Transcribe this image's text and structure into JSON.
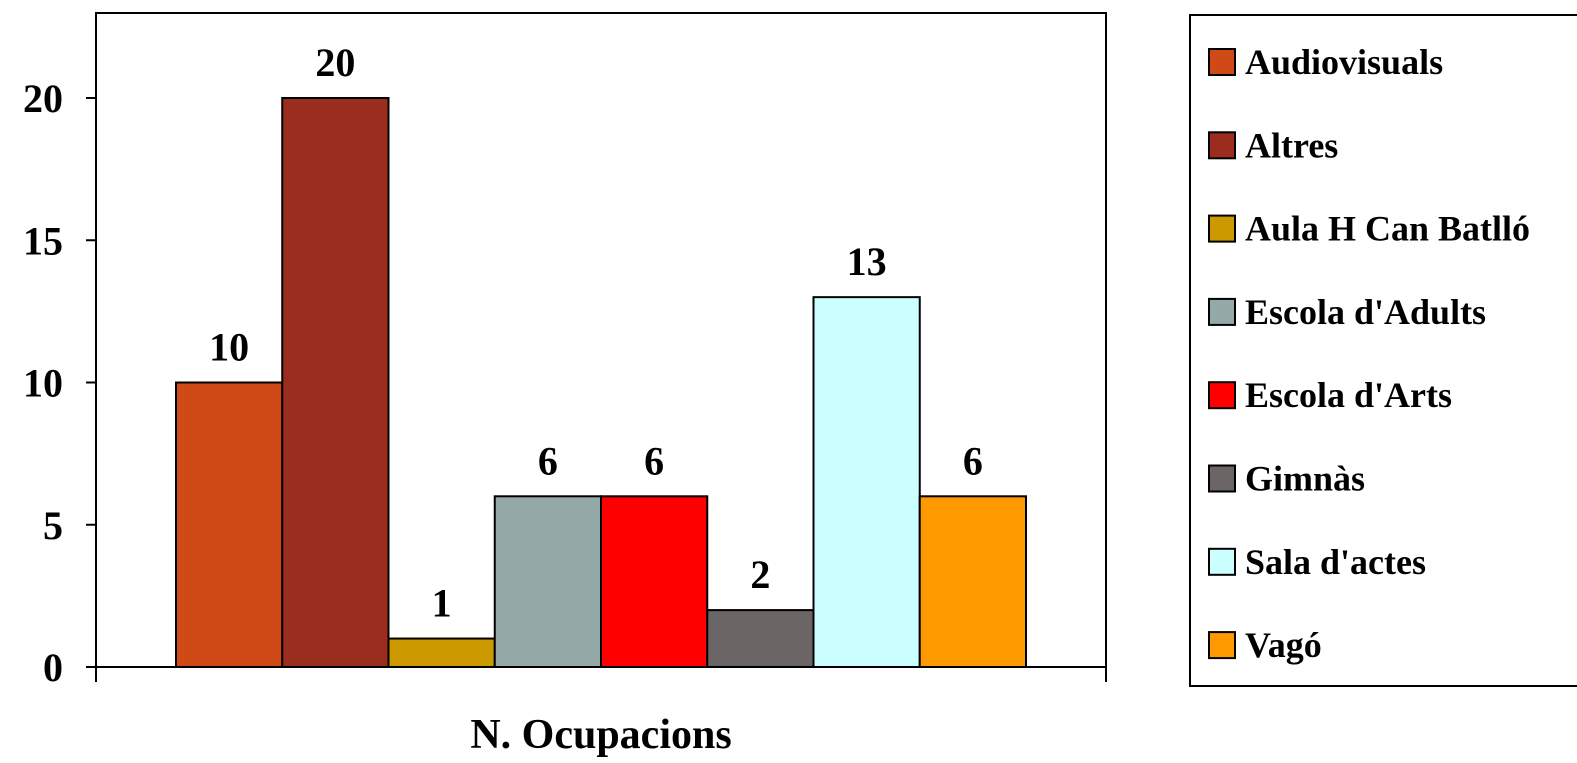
{
  "chart_data": {
    "type": "bar",
    "categories": [
      "N. Ocupacions"
    ],
    "xlabel": "N. Ocupacions",
    "ylabel": "",
    "title": "",
    "ylim": [
      0,
      23
    ],
    "yticks": [
      0,
      5,
      10,
      15,
      20
    ],
    "grid": false,
    "legend_position": "right",
    "series": [
      {
        "name": "Audiovisuals",
        "values": [
          10
        ],
        "color": "#D04A18"
      },
      {
        "name": "Altres",
        "values": [
          20
        ],
        "color": "#9B2D1F"
      },
      {
        "name": "Aula H Can Batlló",
        "values": [
          1
        ],
        "color": "#CC9900"
      },
      {
        "name": "Escola d'Adults",
        "values": [
          6
        ],
        "color": "#96A9A9"
      },
      {
        "name": "Escola d'Arts",
        "values": [
          6
        ],
        "color": "#FF0000"
      },
      {
        "name": "Gimnàs",
        "values": [
          2
        ],
        "color": "#6B6565"
      },
      {
        "name": "Sala d'actes",
        "values": [
          13
        ],
        "color": "#CCFFFF"
      },
      {
        "name": "Vagó",
        "values": [
          6
        ],
        "color": "#FF9900"
      }
    ]
  }
}
